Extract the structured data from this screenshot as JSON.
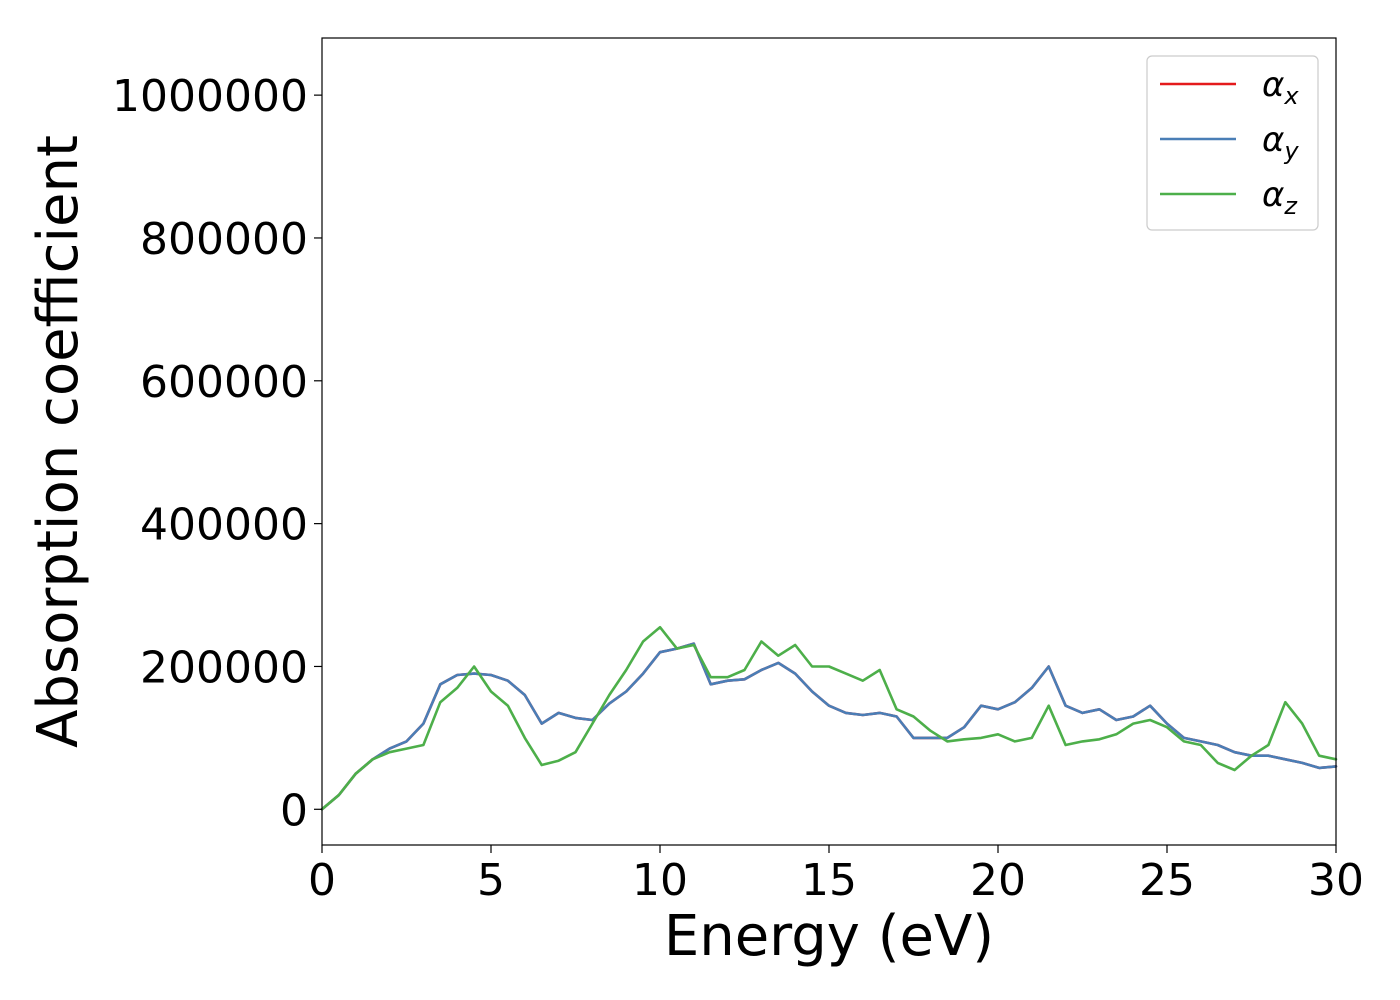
{
  "chart_data": {
    "type": "line",
    "xlabel": "Energy (eV)",
    "ylabel": "Absorption coefficient",
    "xlim": [
      0,
      30
    ],
    "ylim": [
      -50000,
      1080000
    ],
    "xticks": [
      0,
      5,
      10,
      15,
      20,
      25,
      30
    ],
    "xtick_labels": [
      "0",
      "5",
      "10",
      "15",
      "20",
      "25",
      "30"
    ],
    "yticks": [
      0,
      200000,
      400000,
      600000,
      800000,
      1000000
    ],
    "ytick_labels": [
      "0",
      "200000",
      "400000",
      "600000",
      "800000",
      "1000000"
    ],
    "grid": false,
    "legend_position": "top-right",
    "series": [
      {
        "name": "αx",
        "legend_base": "α",
        "legend_sub": "x",
        "color": "#e41a1c",
        "x": [
          0,
          0.5,
          1,
          1.5,
          2,
          2.5,
          3,
          3.5,
          4,
          4.5,
          5,
          5.5,
          6,
          6.5,
          7,
          7.5,
          8,
          8.5,
          9,
          9.5,
          10,
          10.5,
          11,
          11.5,
          12,
          12.5,
          13,
          13.5,
          14,
          14.5,
          15,
          15.5,
          16,
          16.5,
          17,
          17.5,
          18,
          18.5,
          19,
          19.5,
          20,
          20.5,
          21,
          21.5,
          22,
          22.5,
          23,
          23.5,
          24,
          24.5,
          25,
          25.5,
          26,
          26.5,
          27,
          27.5,
          28,
          28.5,
          29,
          29.5,
          30
        ],
        "y": [
          0,
          20000,
          50000,
          70000,
          85000,
          95000,
          120000,
          175000,
          188000,
          190000,
          188000,
          180000,
          160000,
          120000,
          135000,
          128000,
          125000,
          148000,
          165000,
          190000,
          220000,
          225000,
          232000,
          175000,
          180000,
          182000,
          195000,
          205000,
          190000,
          165000,
          145000,
          135000,
          132000,
          135000,
          130000,
          100000,
          100000,
          100000,
          115000,
          145000,
          140000,
          150000,
          170000,
          200000,
          145000,
          135000,
          140000,
          125000,
          130000,
          145000,
          120000,
          100000,
          95000,
          90000,
          80000,
          75000,
          75000,
          70000,
          65000,
          58000,
          60000
        ]
      },
      {
        "name": "αy",
        "legend_base": "α",
        "legend_sub": "y",
        "color": "#4a7eb6",
        "x": [
          0,
          0.5,
          1,
          1.5,
          2,
          2.5,
          3,
          3.5,
          4,
          4.5,
          5,
          5.5,
          6,
          6.5,
          7,
          7.5,
          8,
          8.5,
          9,
          9.5,
          10,
          10.5,
          11,
          11.5,
          12,
          12.5,
          13,
          13.5,
          14,
          14.5,
          15,
          15.5,
          16,
          16.5,
          17,
          17.5,
          18,
          18.5,
          19,
          19.5,
          20,
          20.5,
          21,
          21.5,
          22,
          22.5,
          23,
          23.5,
          24,
          24.5,
          25,
          25.5,
          26,
          26.5,
          27,
          27.5,
          28,
          28.5,
          29,
          29.5,
          30
        ],
        "y": [
          0,
          20000,
          50000,
          70000,
          85000,
          95000,
          120000,
          175000,
          188000,
          190000,
          188000,
          180000,
          160000,
          120000,
          135000,
          128000,
          125000,
          148000,
          165000,
          190000,
          220000,
          225000,
          232000,
          175000,
          180000,
          182000,
          195000,
          205000,
          190000,
          165000,
          145000,
          135000,
          132000,
          135000,
          130000,
          100000,
          100000,
          100000,
          115000,
          145000,
          140000,
          150000,
          170000,
          200000,
          145000,
          135000,
          140000,
          125000,
          130000,
          145000,
          120000,
          100000,
          95000,
          90000,
          80000,
          75000,
          75000,
          70000,
          65000,
          58000,
          60000
        ]
      },
      {
        "name": "αz",
        "legend_base": "α",
        "legend_sub": "z",
        "color": "#4daf4a",
        "x": [
          0,
          0.5,
          1,
          1.5,
          2,
          2.5,
          3,
          3.5,
          4,
          4.5,
          5,
          5.5,
          6,
          6.5,
          7,
          7.5,
          8,
          8.5,
          9,
          9.5,
          10,
          10.5,
          11,
          11.5,
          12,
          12.5,
          13,
          13.5,
          14,
          14.5,
          15,
          15.5,
          16,
          16.5,
          17,
          17.5,
          18,
          18.5,
          19,
          19.5,
          20,
          20.5,
          21,
          21.5,
          22,
          22.5,
          23,
          23.5,
          24,
          24.5,
          25,
          25.5,
          26,
          26.5,
          27,
          27.5,
          28,
          28.5,
          29,
          29.5,
          30
        ],
        "y": [
          0,
          20000,
          50000,
          70000,
          80000,
          85000,
          90000,
          150000,
          170000,
          200000,
          165000,
          145000,
          100000,
          62000,
          68000,
          80000,
          120000,
          160000,
          195000,
          235000,
          255000,
          225000,
          230000,
          185000,
          185000,
          195000,
          235000,
          215000,
          230000,
          200000,
          200000,
          190000,
          180000,
          195000,
          140000,
          130000,
          110000,
          95000,
          98000,
          100000,
          105000,
          95000,
          100000,
          145000,
          90000,
          95000,
          98000,
          105000,
          120000,
          125000,
          115000,
          95000,
          90000,
          65000,
          55000,
          75000,
          90000,
          150000,
          120000,
          75000,
          70000
        ]
      }
    ]
  }
}
